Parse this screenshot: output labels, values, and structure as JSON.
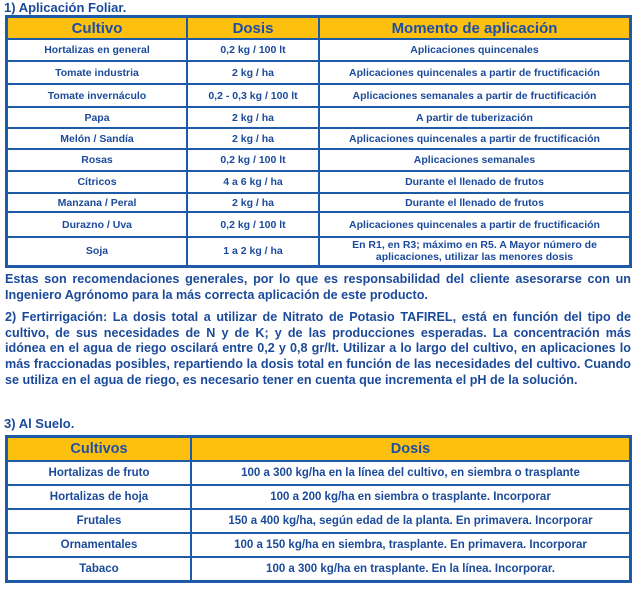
{
  "section1": {
    "title": "1) Aplicación Foliar.",
    "headers": [
      "Cultivo",
      "Dosis",
      "Momento de aplicación"
    ],
    "rows": [
      [
        "Hortalizas en general",
        "0,2 kg / 100 lt",
        "Aplicaciones quincenales"
      ],
      [
        "Tomate industria",
        "2 kg / ha",
        "Aplicaciones quincenales a partir de fructificación"
      ],
      [
        "Tomate invernáculo",
        "0,2 - 0,3 kg / 100 lt",
        "Aplicaciones semanales a partir de fructificación"
      ],
      [
        "Papa",
        "2 kg / ha",
        "A partir de tuberización"
      ],
      [
        "Melón / Sandía",
        "2 kg / ha",
        "Aplicaciones quincenales a partir de fructificación"
      ],
      [
        "Rosas",
        "0,2 kg / 100 lt",
        "Aplicaciones semanales"
      ],
      [
        "Cítricos",
        "4 a 6 kg / ha",
        "Durante el llenado de frutos"
      ],
      [
        "Manzana / Peral",
        "2 kg / ha",
        "Durante el llenado de frutos"
      ],
      [
        "Durazno / Uva",
        "0,2 kg / 100 lt",
        "Aplicaciones quincenales a partir de fructificación"
      ],
      [
        "Soja",
        "1 a 2 kg / ha",
        "En R1, en R3; máximo en R5. A Mayor número de aplicaciones, utilizar las menores dosis"
      ]
    ]
  },
  "note": "Estas son recomendaciones generales, por lo que es responsabilidad del cliente asesorarse con un Ingeniero Agrónomo para la más correcta aplicación de este producto.",
  "section2": {
    "text": "2) Fertirrigación:  La dosis total a utilizar de Nitrato de Potasio  TAFIREL, está en función del tipo de cultivo, de sus necesidades de N y de K; y de las producciones esperadas. La concentración más idónea en el agua de riego oscilará entre 0,2 y 0,8 gr/lt. Utilizar a lo largo del cultivo, en aplicaciones lo más fraccionadas posibles, repartiendo la dosis total en función de las necesidades del cultivo. Cuando se utiliza en el agua de riego, es necesario tener en cuenta que incrementa el pH de la solución."
  },
  "section3": {
    "title": "3) Al Suelo.",
    "headers": [
      "Cultivos",
      "Dosis"
    ],
    "rows": [
      [
        "Hortalizas de fruto",
        "100 a 300 kg/ha en la línea del cultivo, en siembra o trasplante"
      ],
      [
        "Hortalizas de hoja",
        "100 a 200 kg/ha en siembra o trasplante. Incorporar"
      ],
      [
        "Frutales",
        "150 a 400 kg/ha, según edad de la planta. En primavera. Incorporar"
      ],
      [
        "Ornamentales",
        "100 a 150 kg/ha en siembra, trasplante. En primavera.  Incorporar"
      ],
      [
        "Tabaco",
        "100 a 300 kg/ha en trasplante. En la línea. Incorporar."
      ]
    ]
  },
  "colors": {
    "header": "#fdc00f",
    "text": "#1b4a9b",
    "border": "#1d5aa8"
  }
}
